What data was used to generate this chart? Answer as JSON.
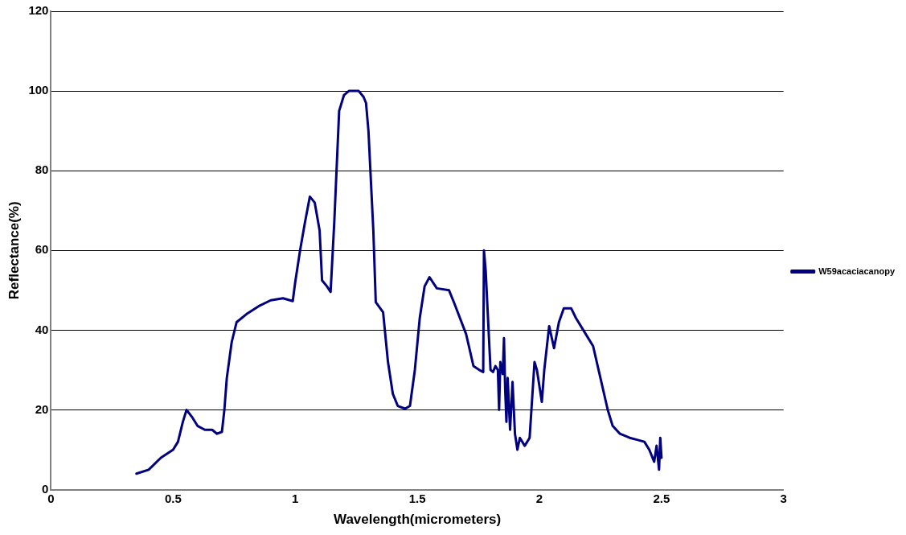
{
  "chart_data": {
    "type": "line",
    "xlabel": "Wavelength(micrometers)",
    "ylabel": "Reflectance(%)",
    "xlim": [
      0,
      3
    ],
    "xticks": [
      0,
      0.5,
      1,
      1.5,
      2,
      2.5,
      3
    ],
    "ylim": [
      0,
      120
    ],
    "yticks": [
      0,
      20,
      40,
      60,
      80,
      100,
      120
    ],
    "grid": "y",
    "legend": "right",
    "marker": "none",
    "line_style": "solid",
    "series": [
      {
        "name": "W59acaciacanopy",
        "color": "#000080",
        "x": [
          0.35,
          0.4,
          0.45,
          0.5,
          0.52,
          0.54,
          0.555,
          0.58,
          0.6,
          0.63,
          0.66,
          0.68,
          0.7,
          0.71,
          0.72,
          0.74,
          0.76,
          0.8,
          0.85,
          0.9,
          0.95,
          0.99,
          1.0,
          1.02,
          1.04,
          1.06,
          1.08,
          1.1,
          1.11,
          1.13,
          1.145,
          1.16,
          1.18,
          1.2,
          1.22,
          1.26,
          1.28,
          1.29,
          1.3,
          1.32,
          1.33,
          1.36,
          1.38,
          1.4,
          1.42,
          1.45,
          1.47,
          1.49,
          1.51,
          1.53,
          1.55,
          1.58,
          1.63,
          1.65,
          1.7,
          1.73,
          1.76,
          1.77,
          1.773,
          1.78,
          1.8,
          1.81,
          1.82,
          1.83,
          1.835,
          1.84,
          1.85,
          1.855,
          1.86,
          1.865,
          1.87,
          1.88,
          1.89,
          1.9,
          1.91,
          1.92,
          1.94,
          1.96,
          1.98,
          1.99,
          2.01,
          2.02,
          2.04,
          2.06,
          2.08,
          2.1,
          2.13,
          2.15,
          2.18,
          2.22,
          2.25,
          2.28,
          2.3,
          2.33,
          2.37,
          2.4,
          2.43,
          2.45,
          2.47,
          2.48,
          2.49,
          2.495,
          2.5
        ],
        "values": [
          4,
          5,
          8,
          10,
          12,
          17,
          20,
          18,
          16,
          15,
          15,
          14,
          14.5,
          20,
          28,
          37,
          42,
          44,
          46,
          47.5,
          48,
          47.3,
          52,
          60,
          67,
          73.5,
          72,
          65,
          52.5,
          51,
          49.6,
          67,
          95,
          99,
          100,
          100,
          98.5,
          97,
          90,
          65,
          47,
          44.5,
          32,
          24,
          21,
          20.3,
          21,
          30,
          43,
          51,
          53.3,
          50.5,
          50,
          47,
          39,
          31,
          29.8,
          29.5,
          60,
          55,
          30,
          29.5,
          31,
          30,
          20,
          32,
          29,
          38,
          25,
          17,
          28,
          15,
          27,
          14,
          10,
          13,
          11,
          13,
          32,
          30,
          22,
          30,
          41,
          35.5,
          42,
          45.5,
          45.5,
          43,
          40,
          36,
          28,
          20,
          16,
          14,
          13,
          12.5,
          12,
          10,
          7,
          11,
          5,
          13,
          8
        ]
      }
    ]
  }
}
